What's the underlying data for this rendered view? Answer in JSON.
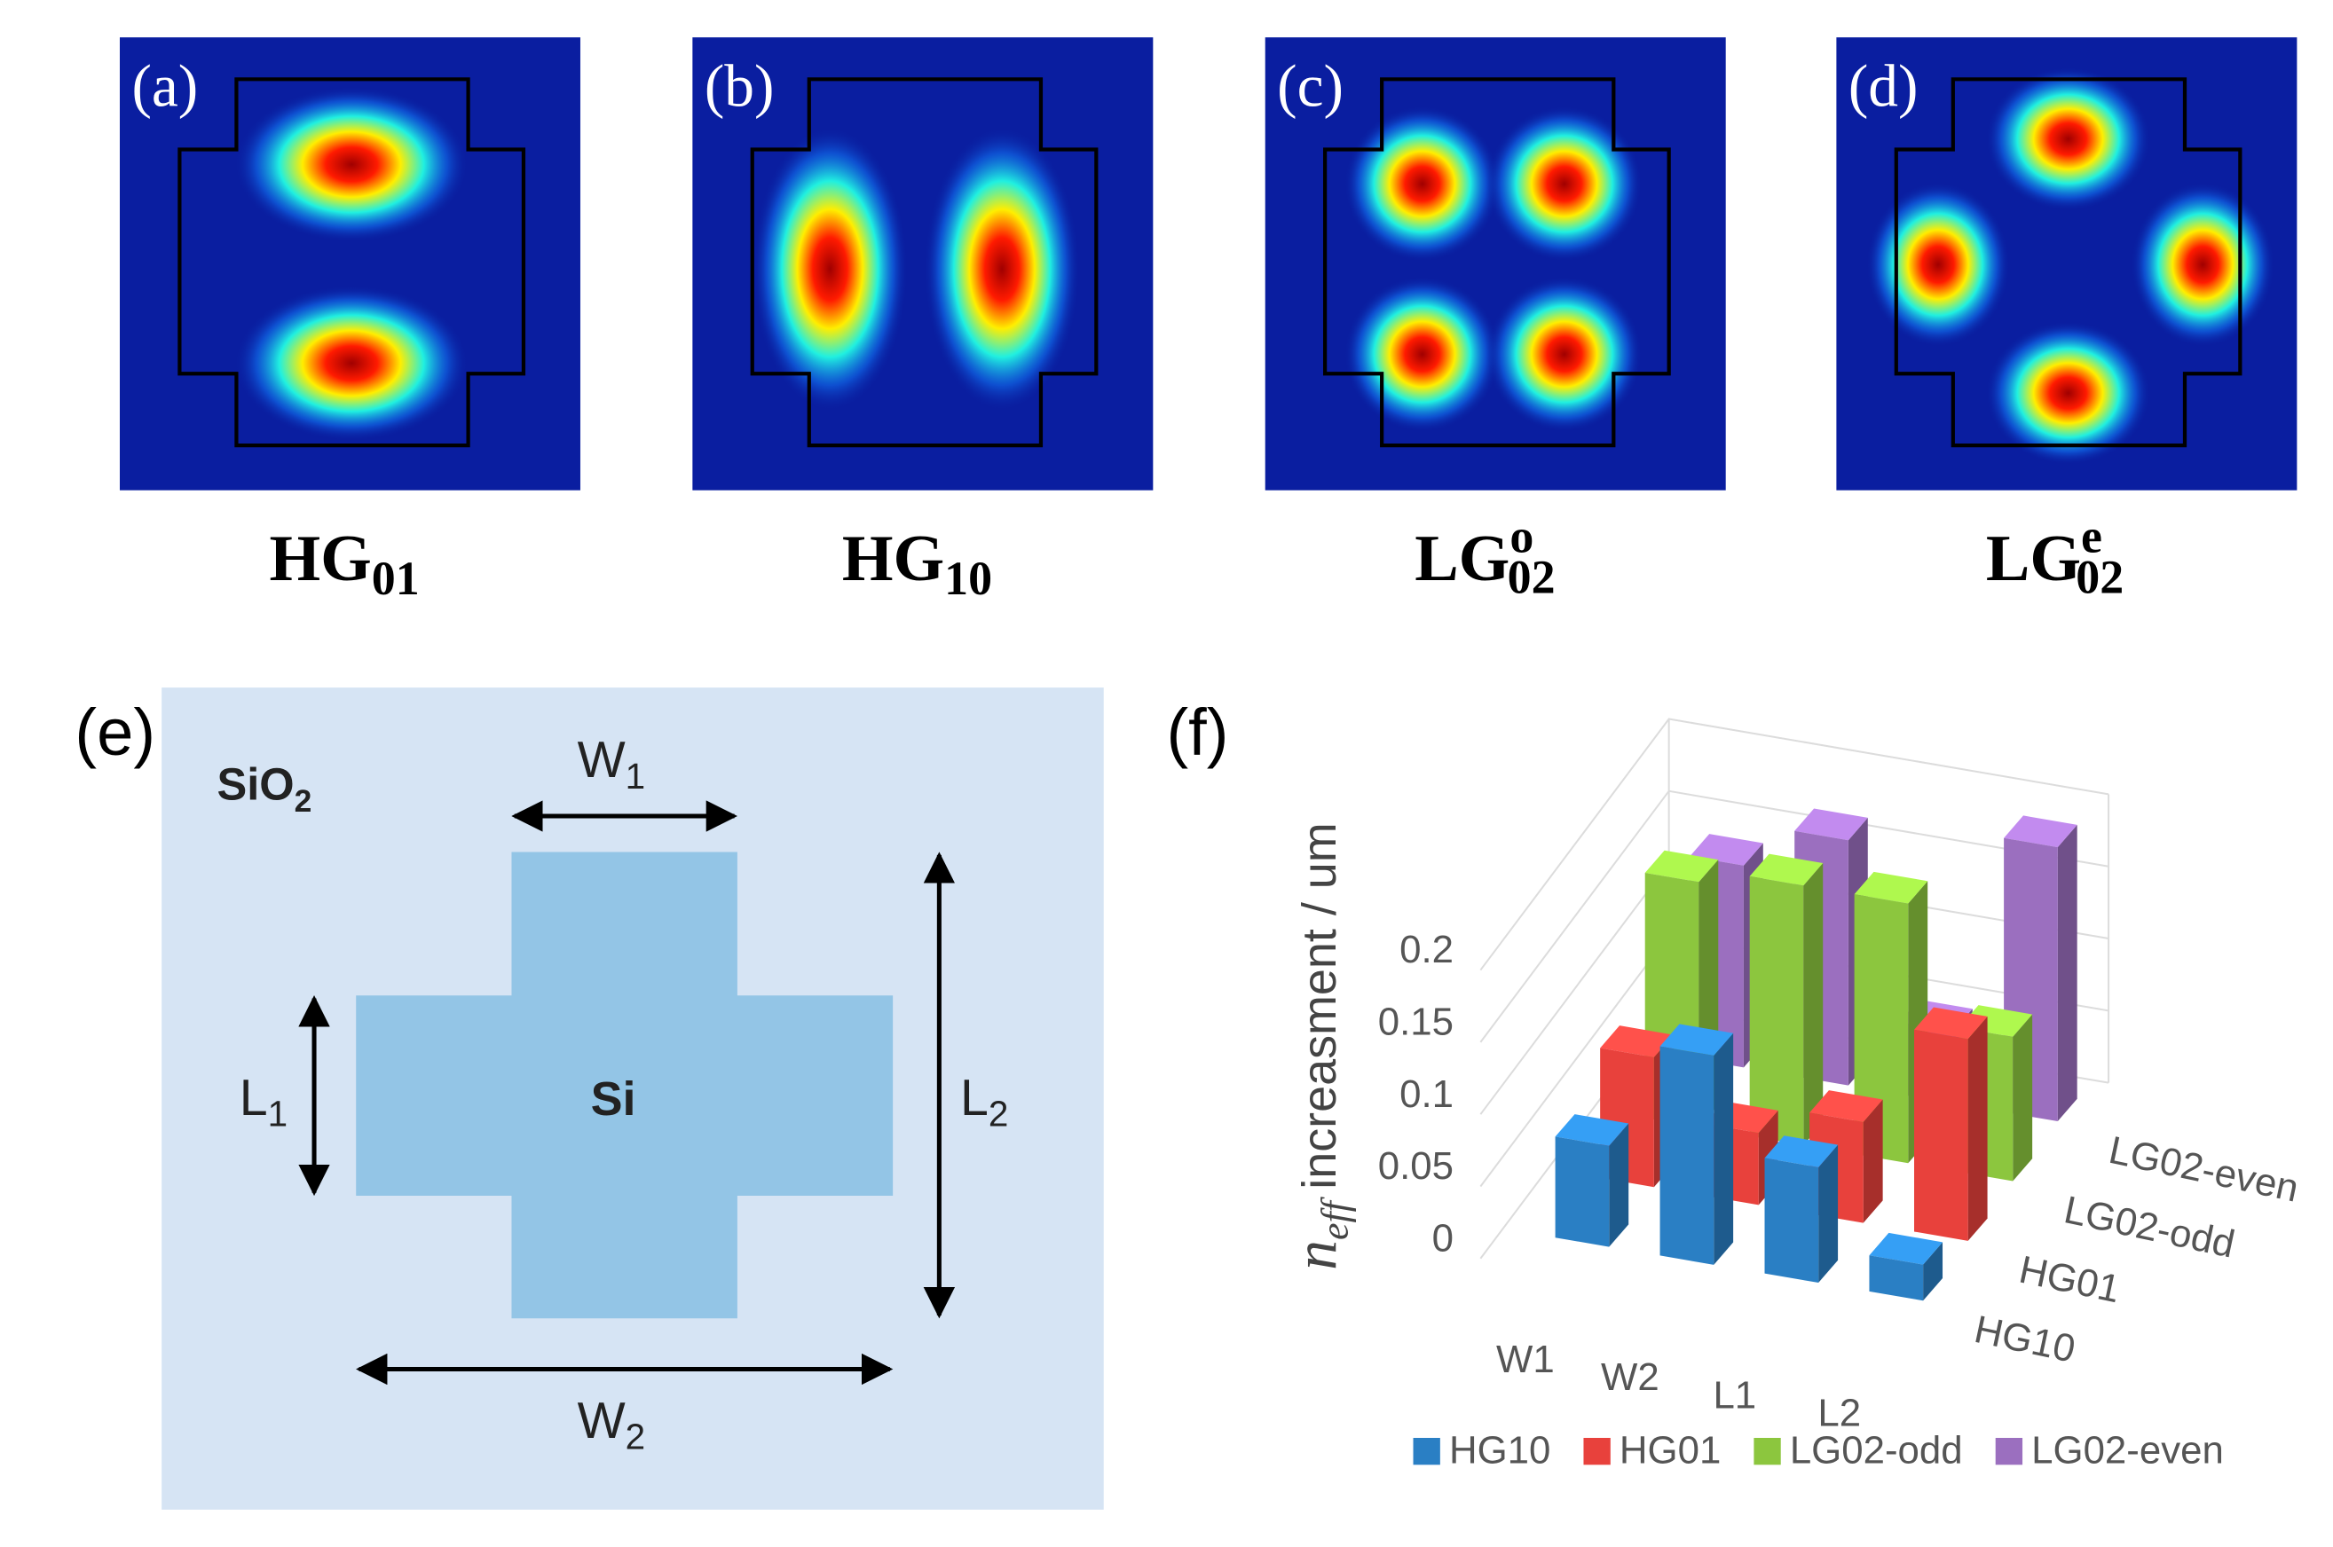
{
  "panels": [
    {
      "label": "(a)",
      "mode": {
        "base": "HG",
        "sub": "01"
      }
    },
    {
      "label": "(b)",
      "mode": {
        "base": "HG",
        "sub": "10"
      }
    },
    {
      "label": "(c)",
      "mode": {
        "base": "LG",
        "sup": "o",
        "sub": "02"
      }
    },
    {
      "label": "(d)",
      "mode": {
        "base": "LG",
        "sup": "e",
        "sub": "02"
      }
    }
  ],
  "schematic": {
    "label": "(e)",
    "cladding": {
      "base": "SiO",
      "sub": "2"
    },
    "core": "Si",
    "dims": [
      {
        "base": "W",
        "sub": "1"
      },
      {
        "base": "L",
        "sub": "1"
      },
      {
        "base": "L",
        "sub": "2"
      },
      {
        "base": "W",
        "sub": "2"
      }
    ]
  },
  "chart_data": {
    "type": "bar3d",
    "label": "(f)",
    "y_label": {
      "symbol": "n",
      "sub": "eff",
      "rest": "increasment / um"
    },
    "categories": [
      "W1",
      "W2",
      "L1",
      "L2"
    ],
    "series": [
      {
        "name": "HG10",
        "color": "#2a7fc4",
        "values": [
          0.07,
          0.145,
          0.08,
          0.025
        ]
      },
      {
        "name": "HG01",
        "color": "#e8413c",
        "values": [
          0.09,
          0.05,
          0.07,
          0.14
        ]
      },
      {
        "name": "LG02-odd",
        "color": "#8cc63e",
        "values": [
          0.17,
          0.18,
          0.18,
          0.1
        ]
      },
      {
        "name": "LG02-even",
        "color": "#9b6fbf",
        "values": [
          0.14,
          0.17,
          0.05,
          0.19
        ]
      }
    ],
    "ylim": [
      0,
      0.2
    ],
    "yticks": [
      0,
      0.05,
      0.1,
      0.15,
      0.2
    ],
    "grid": true,
    "legend": "bottom"
  }
}
